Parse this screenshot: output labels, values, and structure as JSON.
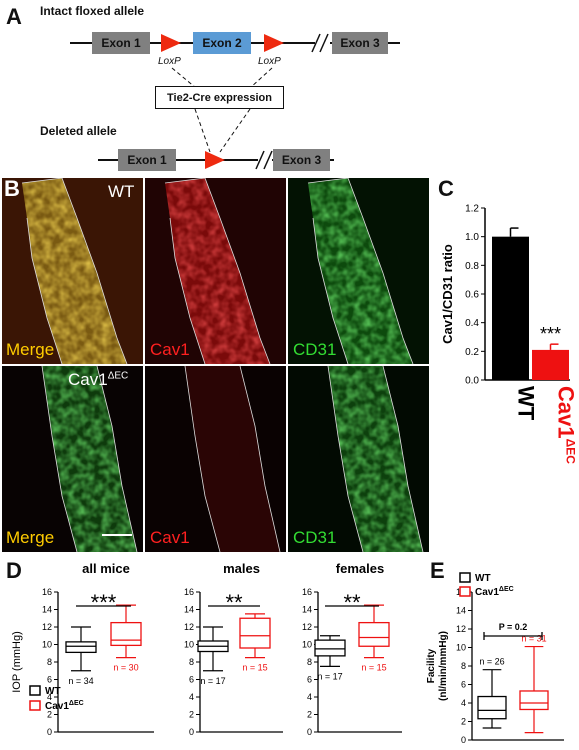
{
  "panel_a": {
    "letter": "A",
    "floxed_title": "Intact floxed allele",
    "deleted_title": "Deleted allele",
    "exon1": "Exon 1",
    "exon2": "Exon 2",
    "exon3": "Exon 3",
    "loxp": "LoxP",
    "cre_label": "Tie2-Cre expression"
  },
  "panel_b": {
    "letter": "B",
    "wt_label": "WT",
    "ko_label": "Cav1",
    "ko_sup": "ΔEC",
    "merge": "Merge",
    "cav1": "Cav1",
    "cd31": "CD31",
    "colors": {
      "merge": "#ffcc00",
      "cav1": "#ff2020",
      "cd31": "#33dd33"
    }
  },
  "panel_c": {
    "letter": "C",
    "wt_tick": "WT",
    "ko_tick": "Cav1",
    "ko_sup": "ΔEC"
  },
  "panel_d": {
    "letter": "D",
    "legend": {
      "wt": "WT",
      "ko": "Cav1",
      "ko_sup": "ΔEC"
    }
  },
  "panel_e": {
    "letter": "E",
    "legend": {
      "wt": "WT",
      "ko": "Cav1",
      "ko_sup": "ΔEC"
    }
  },
  "chart_data": [
    {
      "type": "bar",
      "panel": "C",
      "title": "",
      "ylabel": "Cav1/CD31 ratio",
      "ylim": [
        0,
        1.2
      ],
      "yticks": [
        "0.0",
        "0.2",
        "0.4",
        "0.6",
        "0.8",
        "1.0",
        "1.2"
      ],
      "categories": [
        "WT",
        "Cav1ΔEC"
      ],
      "values": [
        1.0,
        0.21
      ],
      "errors": [
        0.06,
        0.04
      ],
      "colors": [
        "#000000",
        "#ee1111"
      ],
      "significance": "***"
    },
    {
      "type": "box",
      "panel": "D",
      "title": "all mice",
      "ylabel": "IOP (mmHg)",
      "ylim": [
        0,
        16
      ],
      "yticks": [
        "0",
        "2",
        "4",
        "6",
        "8",
        "10",
        "12",
        "14",
        "16"
      ],
      "series": [
        {
          "name": "WT",
          "min": 7.0,
          "q1": 9.1,
          "median": 9.8,
          "q3": 10.3,
          "max": 12.0,
          "n": "n = 34"
        },
        {
          "name": "Cav1ΔEC",
          "min": 8.5,
          "q1": 9.9,
          "median": 10.5,
          "q3": 12.5,
          "max": 14.5,
          "n": "n = 30"
        }
      ],
      "significance": "***"
    },
    {
      "type": "box",
      "panel": "D",
      "title": "males",
      "ylim": [
        0,
        16
      ],
      "yticks": [
        "0",
        "2",
        "4",
        "6",
        "8",
        "10",
        "12",
        "14",
        "16"
      ],
      "series": [
        {
          "name": "WT",
          "min": 7.0,
          "q1": 9.2,
          "median": 9.8,
          "q3": 10.4,
          "max": 12.0,
          "n": "n = 17"
        },
        {
          "name": "Cav1ΔEC",
          "min": 8.5,
          "q1": 9.6,
          "median": 11.0,
          "q3": 13.0,
          "max": 13.5,
          "n": "n = 15"
        }
      ],
      "significance": "**"
    },
    {
      "type": "box",
      "panel": "D",
      "title": "females",
      "ylim": [
        0,
        16
      ],
      "yticks": [
        "0",
        "2",
        "4",
        "6",
        "8",
        "10",
        "12",
        "14",
        "16"
      ],
      "series": [
        {
          "name": "WT",
          "min": 7.5,
          "q1": 8.7,
          "median": 9.5,
          "q3": 10.5,
          "max": 11.0,
          "n": "n = 17"
        },
        {
          "name": "Cav1ΔEC",
          "min": 8.5,
          "q1": 9.8,
          "median": 10.8,
          "q3": 12.5,
          "max": 14.5,
          "n": "n = 15"
        }
      ],
      "significance": "**"
    },
    {
      "type": "box",
      "panel": "E",
      "title": "",
      "ylabel": "Facility (nl/min/mmHg)",
      "ylim": [
        0,
        16
      ],
      "yticks": [
        "0",
        "2",
        "4",
        "6",
        "8",
        "10",
        "12",
        "14",
        "16"
      ],
      "series": [
        {
          "name": "WT",
          "min": 1.3,
          "q1": 2.3,
          "median": 3.2,
          "q3": 4.7,
          "max": 7.6,
          "n": "n = 26"
        },
        {
          "name": "Cav1ΔEC",
          "min": 0.8,
          "q1": 3.3,
          "median": 4.0,
          "q3": 5.3,
          "max": 10.1,
          "n": "n = 31"
        }
      ],
      "significance": "P = 0.2"
    }
  ]
}
